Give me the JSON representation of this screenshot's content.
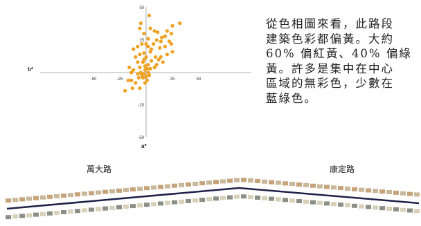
{
  "chart_data": {
    "type": "scatter",
    "xlabel": "a*",
    "ylabel": "b*",
    "xlim": [
      -50,
      50
    ],
    "ylim": [
      -50,
      50
    ],
    "x_ticks": [
      "-50",
      "-25",
      "0",
      "25",
      "50"
    ],
    "y_ticks": [
      "50",
      "25",
      "-25",
      "-50"
    ],
    "grid": false,
    "point_color": "#f0a020",
    "points": [
      [
        32,
        38
      ],
      [
        25,
        36
      ],
      [
        24,
        30
      ],
      [
        20,
        32
      ],
      [
        18,
        28
      ],
      [
        15,
        27
      ],
      [
        11,
        31
      ],
      [
        8,
        32
      ],
      [
        3,
        44
      ],
      [
        4,
        34
      ],
      [
        2,
        26
      ],
      [
        -5,
        38
      ],
      [
        -6,
        34
      ],
      [
        -2,
        30
      ],
      [
        10,
        25
      ],
      [
        14,
        24
      ],
      [
        22,
        24
      ],
      [
        24,
        22
      ],
      [
        18,
        20
      ],
      [
        13,
        19
      ],
      [
        7,
        22
      ],
      [
        5,
        18
      ],
      [
        2,
        20
      ],
      [
        0,
        22
      ],
      [
        -4,
        22
      ],
      [
        -8,
        20
      ],
      [
        -12,
        18
      ],
      [
        -6,
        14
      ],
      [
        -2,
        15
      ],
      [
        4,
        16
      ],
      [
        9,
        12
      ],
      [
        14,
        12
      ],
      [
        20,
        14
      ],
      [
        25,
        16
      ],
      [
        16,
        8
      ],
      [
        12,
        10
      ],
      [
        8,
        4
      ],
      [
        4,
        3
      ],
      [
        2,
        6
      ],
      [
        -1,
        2
      ],
      [
        -3,
        8
      ],
      [
        -6,
        4
      ],
      [
        -8,
        8
      ],
      [
        -10,
        12
      ],
      [
        -12,
        2
      ],
      [
        -16,
        4
      ],
      [
        -14,
        -6
      ],
      [
        -10,
        -8
      ],
      [
        -6,
        -12
      ],
      [
        -3,
        -4
      ],
      [
        0,
        -3
      ],
      [
        1,
        -6
      ],
      [
        2,
        0
      ],
      [
        -1,
        -8
      ],
      [
        -4,
        -2
      ],
      [
        -8,
        -1
      ],
      [
        -17,
        -6
      ],
      [
        -13,
        -12
      ],
      [
        -20,
        -14
      ],
      [
        -14,
        0
      ],
      [
        -2,
        10
      ],
      [
        0,
        12
      ],
      [
        5,
        9
      ],
      [
        10,
        6
      ],
      [
        -5,
        0
      ],
      [
        -7,
        -4
      ],
      [
        3,
        -2
      ],
      [
        1,
        3
      ],
      [
        -2,
        -1
      ],
      [
        -1,
        5
      ]
    ]
  },
  "caption": {
    "lines": [
      "從色相圖來看，此路段",
      "建築色彩都偏黃。大約",
      "60% 偏紅黃、40% 偏綠",
      "黃。許多是集中在中心",
      "區域的無彩色，少數在",
      "藍綠色。"
    ]
  },
  "roads": {
    "left_name": "萬大路",
    "right_name": "康定路",
    "divider_color": "#1d2048",
    "swatch_colors": [
      "#8a5a3a",
      "#c9b79a",
      "#a9b3b0",
      "#7a3a2a",
      "#d8d0b8",
      "#5a6a72",
      "#b89060",
      "#e4ddc8",
      "#6b4a36",
      "#9aa8a0",
      "#c7a37a",
      "#4a3a34",
      "#d9c8a0",
      "#8c8f86",
      "#b65a3a",
      "#e8e2d0",
      "#7a6a50",
      "#a0b0b8"
    ]
  }
}
